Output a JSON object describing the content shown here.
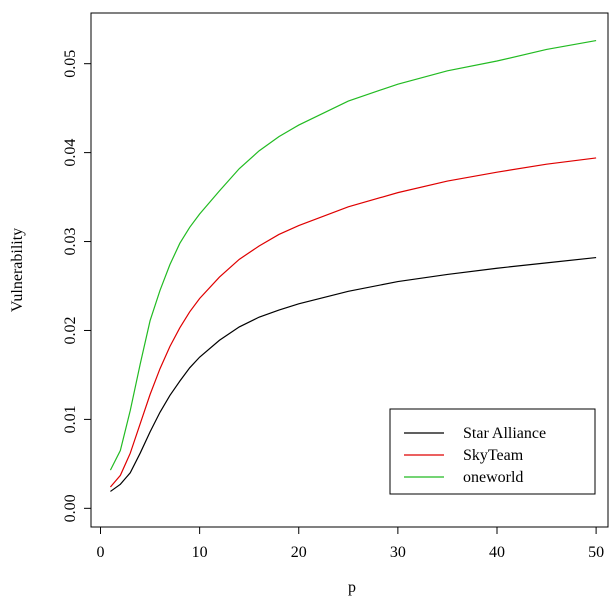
{
  "chart_data": {
    "type": "line",
    "xlabel": "p",
    "ylabel": "Vulnerability",
    "x": [
      1,
      2,
      3,
      4,
      5,
      6,
      7,
      8,
      9,
      10,
      12,
      14,
      16,
      18,
      20,
      25,
      30,
      35,
      40,
      45,
      50
    ],
    "series": [
      {
        "name": "Star Alliance",
        "color": "#000000",
        "values": [
          0.0019,
          0.0027,
          0.004,
          0.0062,
          0.0086,
          0.0108,
          0.0127,
          0.0143,
          0.0158,
          0.017,
          0.0189,
          0.0204,
          0.0215,
          0.0223,
          0.023,
          0.0244,
          0.0255,
          0.0263,
          0.027,
          0.0276,
          0.0282
        ]
      },
      {
        "name": "SkyTeam",
        "color": "#df0000",
        "values": [
          0.0024,
          0.0037,
          0.0062,
          0.0095,
          0.0128,
          0.0157,
          0.0182,
          0.0203,
          0.0221,
          0.0236,
          0.026,
          0.028,
          0.0295,
          0.0308,
          0.0318,
          0.0339,
          0.0355,
          0.0368,
          0.0378,
          0.0387,
          0.0394
        ]
      },
      {
        "name": "oneworld",
        "color": "#22bb22",
        "values": [
          0.0043,
          0.0065,
          0.011,
          0.0162,
          0.0211,
          0.0245,
          0.0274,
          0.0298,
          0.0316,
          0.0331,
          0.0357,
          0.0382,
          0.0402,
          0.0418,
          0.0431,
          0.0458,
          0.0477,
          0.0492,
          0.0503,
          0.0516,
          0.0526
        ]
      }
    ],
    "xlim": [
      -0.96,
      51.2
    ],
    "xticks": [
      0,
      10,
      20,
      30,
      40,
      50
    ],
    "ylim": [
      -0.0021,
      0.0557
    ],
    "yticks": [
      {
        "value": 0,
        "label": "0.00"
      },
      {
        "value": 0.01,
        "label": "0.01"
      },
      {
        "value": 0.02,
        "label": "0.02"
      },
      {
        "value": 0.03,
        "label": "0.03"
      },
      {
        "value": 0.04,
        "label": "0.04"
      },
      {
        "value": 0.05,
        "label": "0.05"
      }
    ],
    "legend": "bottom-right"
  }
}
